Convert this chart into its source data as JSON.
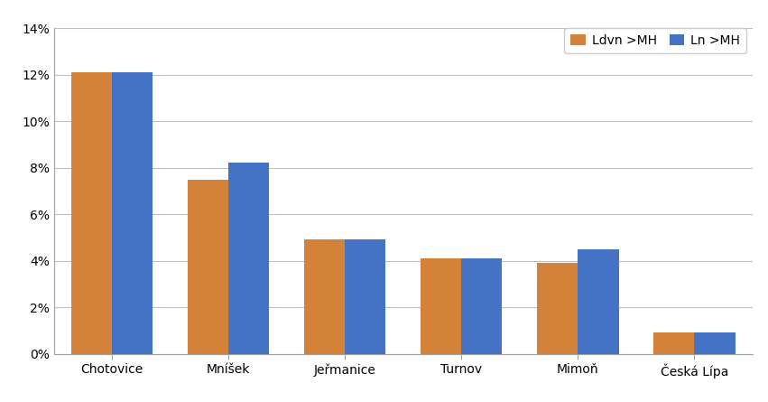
{
  "categories": [
    "Chotovice",
    "Mníšek",
    "Jeřmanice",
    "Turnov",
    "Mimoň",
    "Česká Lípa"
  ],
  "ldvn": [
    0.121,
    0.075,
    0.049,
    0.041,
    0.039,
    0.009
  ],
  "ln": [
    0.121,
    0.082,
    0.049,
    0.041,
    0.045,
    0.009
  ],
  "color_ldvn": "#D4813A",
  "color_ln": "#4472C4",
  "legend_ldvn": "Ldvn >MH",
  "legend_ln": "Ln >MH",
  "ylim": [
    0,
    0.14
  ],
  "yticks": [
    0,
    0.02,
    0.04,
    0.06,
    0.08,
    0.1,
    0.12,
    0.14
  ],
  "bar_width": 0.35,
  "background_color": "#ffffff",
  "grid_color": "#bebebe",
  "tick_fontsize": 10,
  "legend_fontsize": 10,
  "spine_color": "#a0a0a0"
}
